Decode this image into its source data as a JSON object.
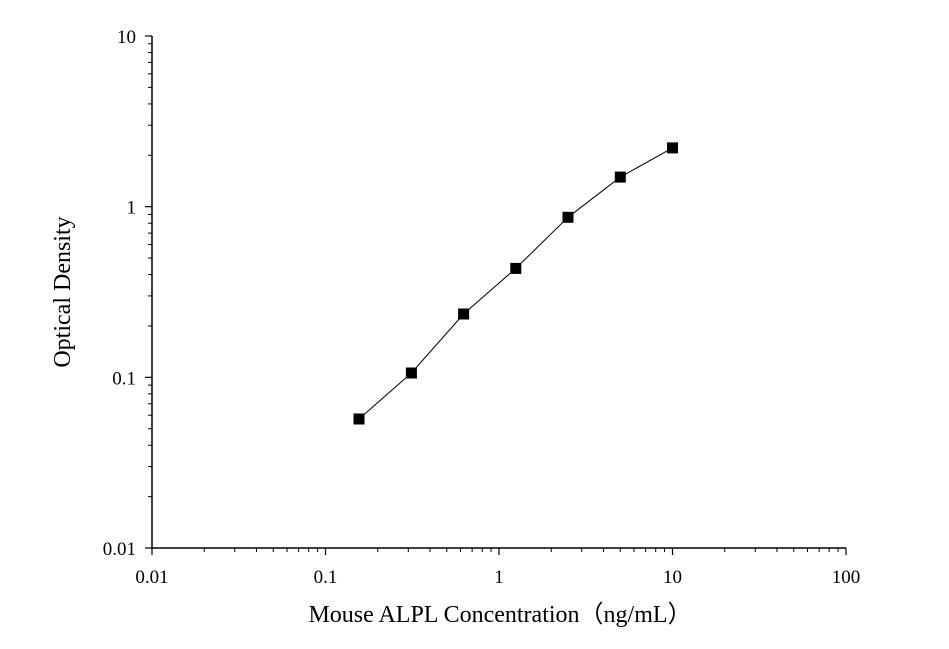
{
  "chart_data": {
    "type": "scatter",
    "title": "",
    "xlabel": "Mouse ALPL Concentration（ng/mL）",
    "ylabel": "Optical Density",
    "xscale": "log",
    "yscale": "log",
    "xlim": [
      0.01,
      100
    ],
    "ylim": [
      0.01,
      10
    ],
    "x_ticks": [
      0.01,
      0.1,
      1,
      10,
      100
    ],
    "x_tick_labels": [
      "0.01",
      "0.1",
      "1",
      "10",
      "100"
    ],
    "y_ticks": [
      0.01,
      0.1,
      1,
      10
    ],
    "y_tick_labels": [
      "0.01",
      "0.1",
      "1",
      "10"
    ],
    "grid": false,
    "legend": "none",
    "marker": "square",
    "connected": true,
    "colors": {
      "marker": "#000000",
      "line": "#000000",
      "axis": "#000000"
    },
    "series": [
      {
        "x": [
          0.156,
          0.3125,
          0.625,
          1.25,
          2.5,
          5,
          10
        ],
        "y": [
          0.057,
          0.106,
          0.235,
          0.435,
          0.866,
          1.49,
          2.21
        ]
      }
    ]
  }
}
